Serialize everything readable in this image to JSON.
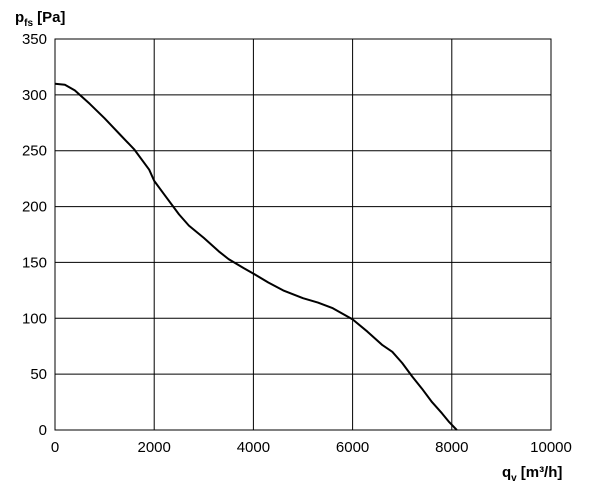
{
  "chart_data": {
    "type": "line",
    "ylabel": {
      "symbol": "p",
      "subscript": "fs",
      "unit": "[Pa]"
    },
    "xlabel": {
      "symbol": "q",
      "subscript": "v",
      "unit": "[m³/h]"
    },
    "xlim": [
      0,
      10000
    ],
    "ylim": [
      0,
      350
    ],
    "x_ticks": [
      0,
      2000,
      4000,
      6000,
      8000,
      10000
    ],
    "y_ticks": [
      0,
      50,
      100,
      150,
      200,
      250,
      300,
      350
    ],
    "grid": true,
    "series": [
      {
        "color": "#000000",
        "points": [
          [
            0,
            310
          ],
          [
            200,
            309
          ],
          [
            400,
            304
          ],
          [
            700,
            292
          ],
          [
            1000,
            279
          ],
          [
            1300,
            265
          ],
          [
            1600,
            251
          ],
          [
            1900,
            233
          ],
          [
            2000,
            223
          ],
          [
            2200,
            211
          ],
          [
            2500,
            193
          ],
          [
            2700,
            183
          ],
          [
            3000,
            172
          ],
          [
            3300,
            160
          ],
          [
            3500,
            153
          ],
          [
            3800,
            145
          ],
          [
            4000,
            140
          ],
          [
            4300,
            132
          ],
          [
            4600,
            125
          ],
          [
            5000,
            118
          ],
          [
            5300,
            114
          ],
          [
            5600,
            109
          ],
          [
            6000,
            99
          ],
          [
            6300,
            88
          ],
          [
            6600,
            76
          ],
          [
            6800,
            70
          ],
          [
            7000,
            60
          ],
          [
            7200,
            48
          ],
          [
            7400,
            37
          ],
          [
            7600,
            25
          ],
          [
            7800,
            15
          ],
          [
            7950,
            7
          ],
          [
            8100,
            0
          ]
        ]
      }
    ]
  }
}
